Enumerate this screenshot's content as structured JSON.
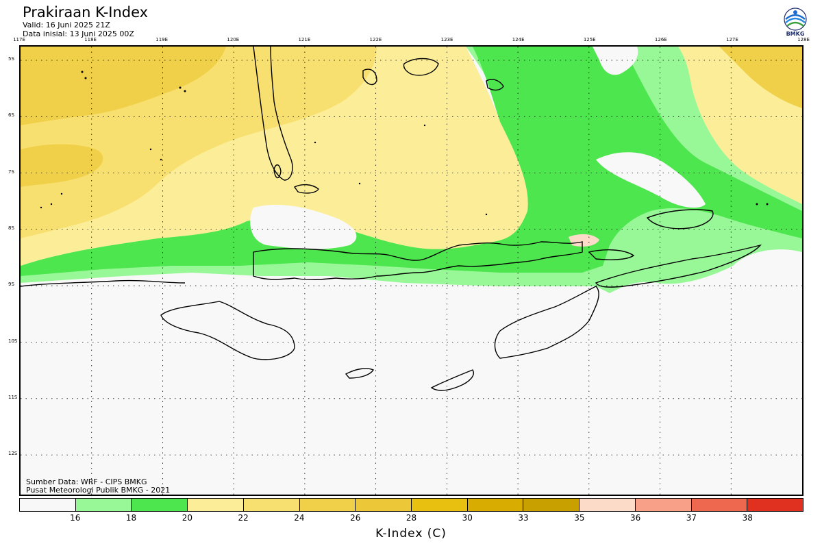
{
  "header": {
    "title": "Prakiraan K-Index",
    "valid": "Valid: 16 Juni 2025 21Z",
    "init": "Data inisial: 13 Juni 2025 00Z",
    "logo_text": "BMKG"
  },
  "map": {
    "lon_ticks": [
      "117E",
      "118E",
      "119E",
      "120E",
      "121E",
      "122E",
      "123E",
      "124E",
      "125E",
      "126E",
      "127E",
      "128E"
    ],
    "lat_ticks": [
      "5S",
      "6S",
      "7S",
      "8S",
      "9S",
      "10S",
      "11S",
      "12S"
    ],
    "colors": {
      "background": "#f8f8f8",
      "green_light": "#98f898",
      "green": "#4ee64e",
      "yellow_light": "#fcee98",
      "yellow": "#f8e070",
      "yellow_mid": "#f0d048",
      "peach": "#fcdcc8"
    }
  },
  "footer": {
    "source": "Sumber Data: WRF - CIPS BMKG",
    "credit": "Pusat Meteorologi Publik BMKG - 2021"
  },
  "colorbar": {
    "colors": [
      "#f8f8f8",
      "#98f898",
      "#4ee64e",
      "#fcee98",
      "#f8e070",
      "#f0d048",
      "#ecc838",
      "#e8c010",
      "#d8ac00",
      "#c8a000",
      "#fcdcc8",
      "#f8a088",
      "#ee6850",
      "#e03020"
    ],
    "labels": [
      "16",
      "18",
      "20",
      "22",
      "24",
      "26",
      "28",
      "30",
      "33",
      "35",
      "36",
      "37",
      "38"
    ],
    "title": "K-Index (C)"
  }
}
